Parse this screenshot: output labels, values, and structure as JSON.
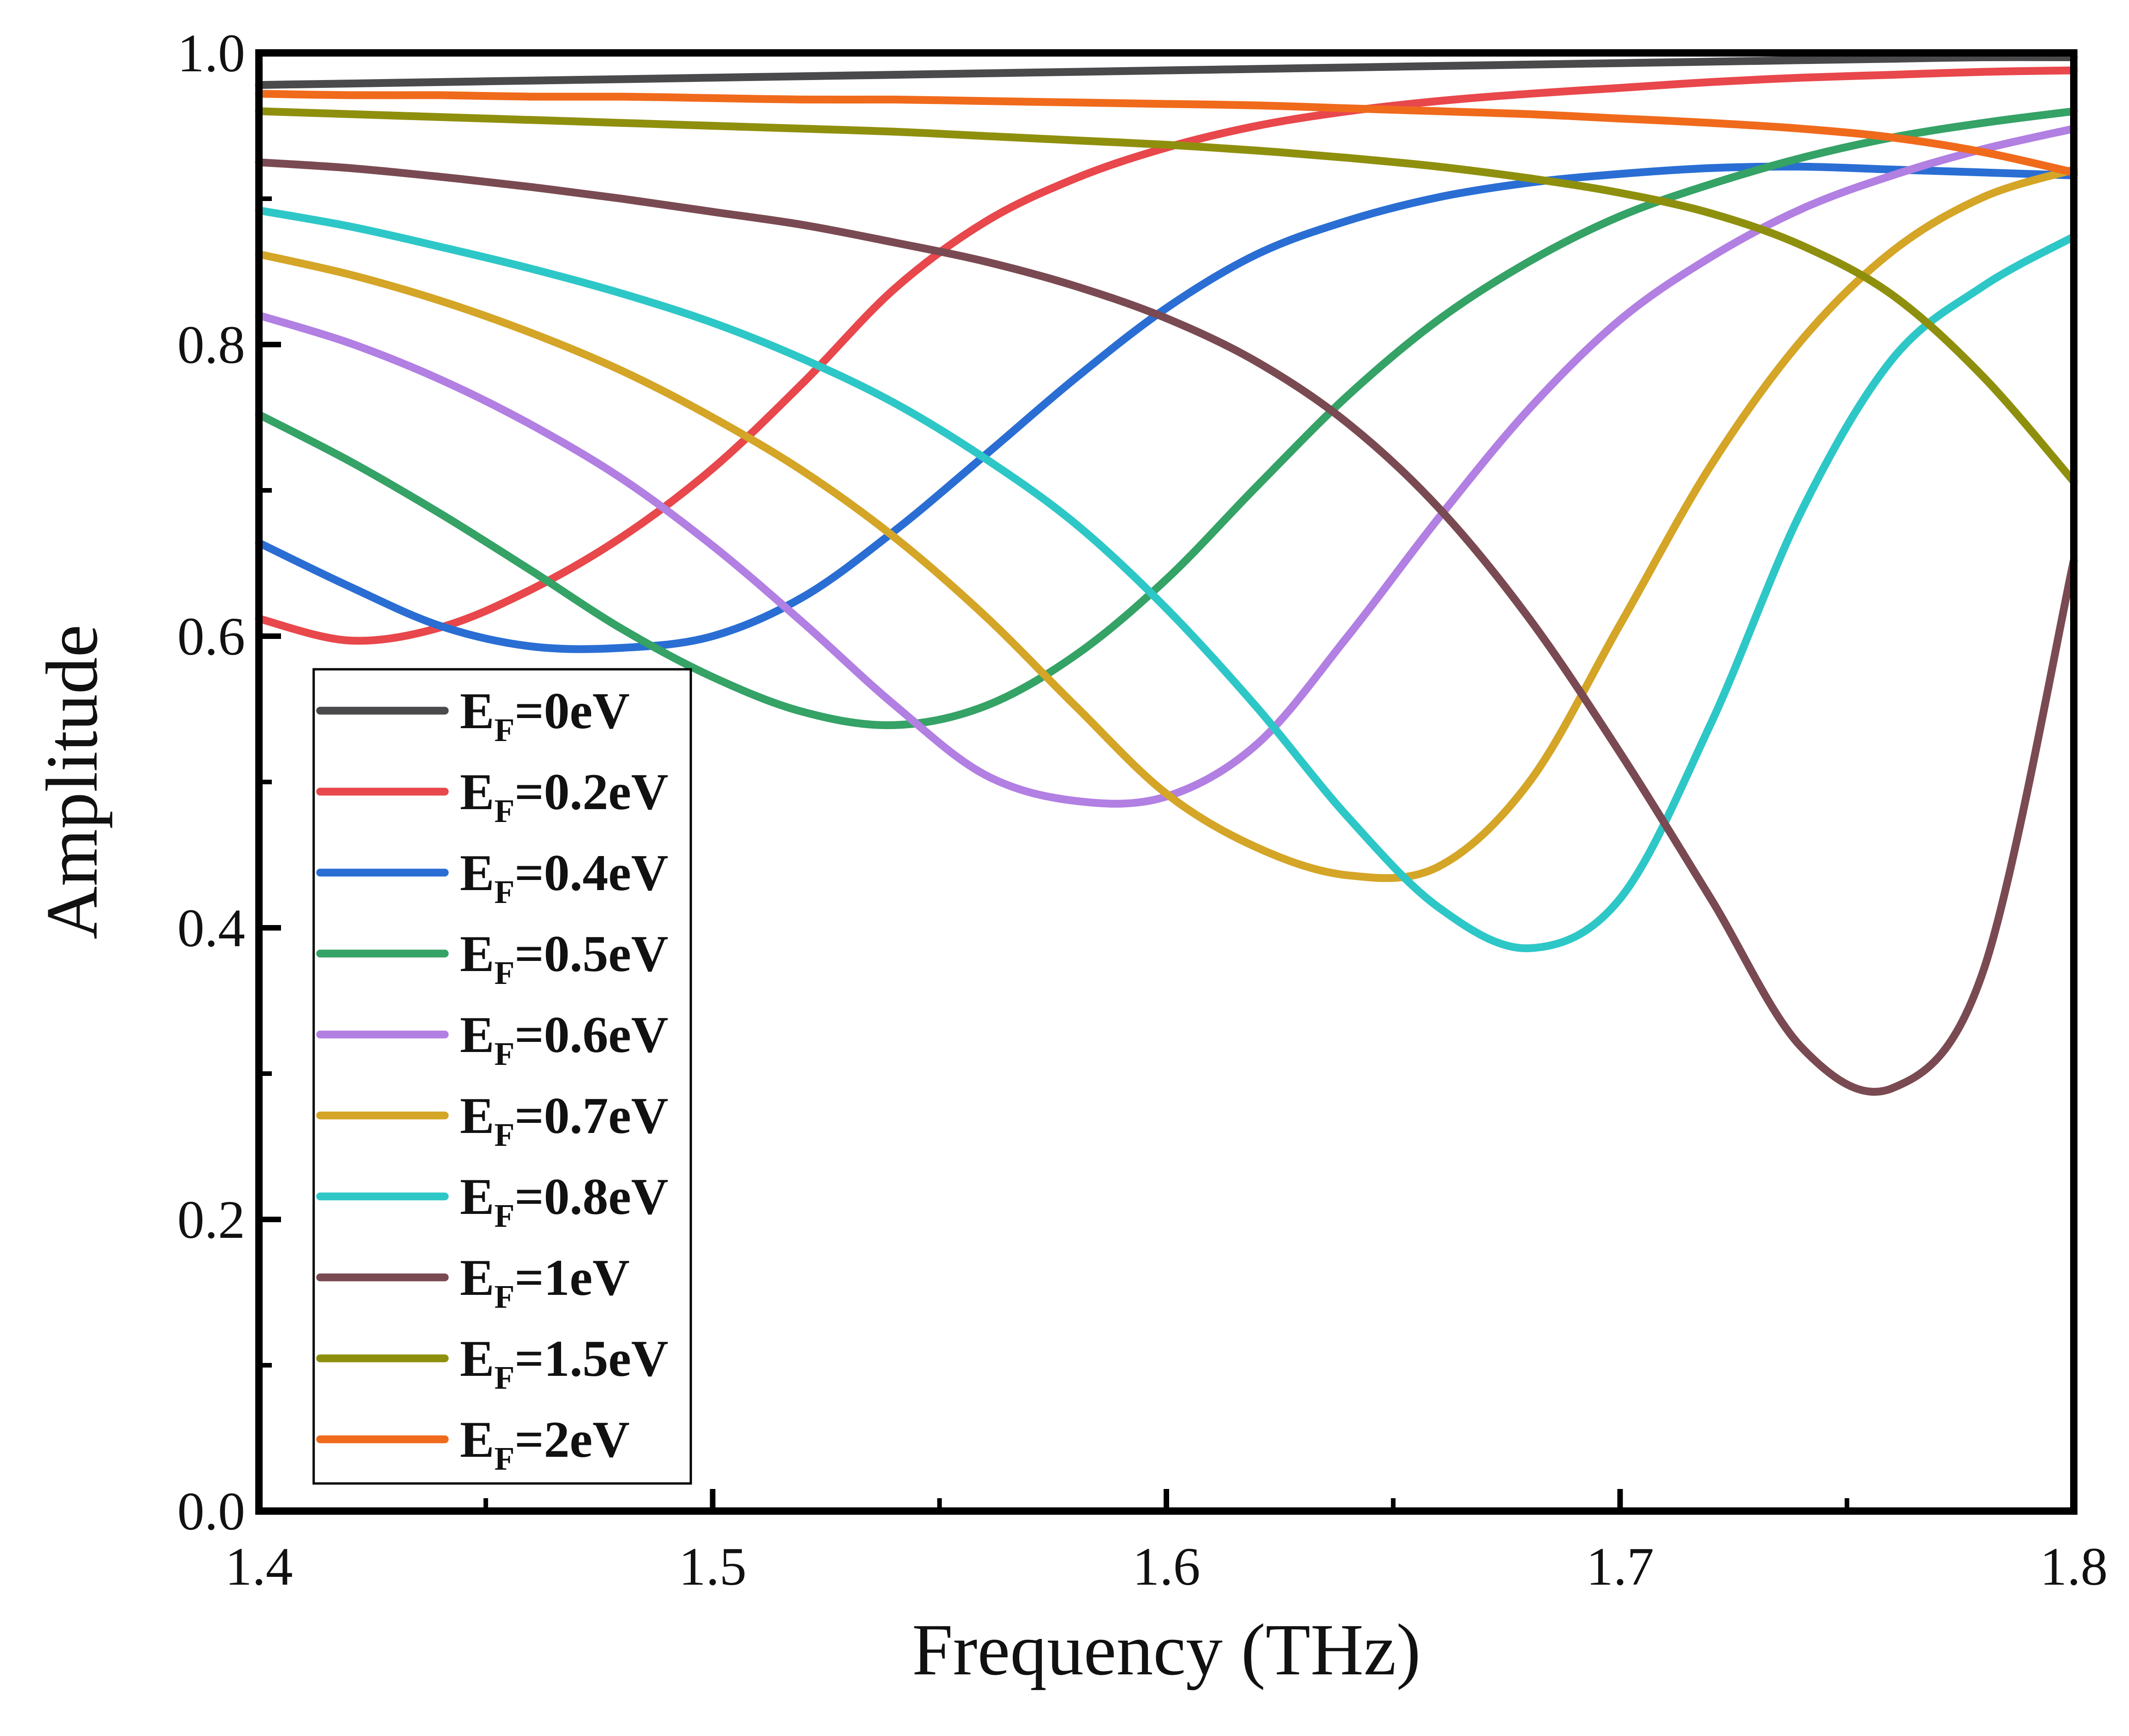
{
  "chart_data": {
    "type": "line",
    "title": "",
    "xlabel": "Frequency (THz)",
    "ylabel": "Amplitude",
    "xlim": [
      1.4,
      1.8
    ],
    "ylim": [
      0.0,
      1.0
    ],
    "xticks": [
      1.4,
      1.5,
      1.6,
      1.7,
      1.8
    ],
    "xtick_labels": [
      "1.4",
      "1.5",
      "1.6",
      "1.7",
      "1.8"
    ],
    "yticks": [
      0.0,
      0.2,
      0.4,
      0.6,
      0.8,
      1.0
    ],
    "ytick_labels": [
      "0.0",
      "0.2",
      "0.4",
      "0.6",
      "0.8",
      "1.0"
    ],
    "grid": false,
    "legend_position": "bottom-left",
    "x": [
      1.4,
      1.42,
      1.44,
      1.46,
      1.48,
      1.5,
      1.52,
      1.54,
      1.56,
      1.58,
      1.6,
      1.62,
      1.64,
      1.66,
      1.68,
      1.7,
      1.72,
      1.74,
      1.76,
      1.78,
      1.8
    ],
    "series": [
      {
        "name": "E_F=0eV",
        "label_main": "E",
        "label_sub": "F",
        "label_tail": "=0eV",
        "color": "#4a4a4c",
        "values": [
          0.978,
          0.979,
          0.98,
          0.981,
          0.982,
          0.983,
          0.984,
          0.985,
          0.986,
          0.987,
          0.988,
          0.989,
          0.99,
          0.991,
          0.992,
          0.993,
          0.994,
          0.995,
          0.996,
          0.997,
          0.997
        ]
      },
      {
        "name": "E_F=0.2eV",
        "label_main": "E",
        "label_sub": "F",
        "label_tail": "=0.2eV",
        "color": "#e8474b",
        "values": [
          0.612,
          0.597,
          0.606,
          0.632,
          0.668,
          0.715,
          0.774,
          0.838,
          0.884,
          0.914,
          0.935,
          0.95,
          0.96,
          0.967,
          0.972,
          0.976,
          0.98,
          0.983,
          0.985,
          0.987,
          0.988
        ]
      },
      {
        "name": "E_F=0.4eV",
        "label_main": "E",
        "label_sub": "F",
        "label_tail": "=0.4eV",
        "color": "#2a6ed4",
        "values": [
          0.664,
          0.634,
          0.607,
          0.593,
          0.592,
          0.6,
          0.627,
          0.672,
          0.724,
          0.777,
          0.825,
          0.862,
          0.885,
          0.901,
          0.911,
          0.917,
          0.921,
          0.922,
          0.92,
          0.918,
          0.916
        ]
      },
      {
        "name": "E_F=0.5eV",
        "label_main": "E",
        "label_sub": "F",
        "label_tail": "=0.5eV",
        "color": "#35a266",
        "values": [
          0.752,
          0.72,
          0.684,
          0.645,
          0.605,
          0.572,
          0.548,
          0.539,
          0.552,
          0.587,
          0.639,
          0.703,
          0.765,
          0.817,
          0.857,
          0.888,
          0.91,
          0.928,
          0.942,
          0.952,
          0.96
        ]
      },
      {
        "name": "E_F=0.6eV",
        "label_main": "E",
        "label_sub": "F",
        "label_tail": "=0.6eV",
        "color": "#b27fe2",
        "values": [
          0.82,
          0.801,
          0.776,
          0.745,
          0.708,
          0.662,
          0.609,
          0.553,
          0.505,
          0.487,
          0.49,
          0.526,
          0.6,
          0.681,
          0.756,
          0.817,
          0.86,
          0.893,
          0.916,
          0.934,
          0.948
        ]
      },
      {
        "name": "E_F=0.7eV",
        "label_main": "E",
        "label_sub": "F",
        "label_tail": "=0.7eV",
        "color": "#d4a526",
        "values": [
          0.862,
          0.848,
          0.83,
          0.808,
          0.782,
          0.75,
          0.713,
          0.668,
          0.614,
          0.552,
          0.492,
          0.455,
          0.436,
          0.442,
          0.5,
          0.608,
          0.717,
          0.803,
          0.864,
          0.901,
          0.92
        ]
      },
      {
        "name": "E_F=0.8eV",
        "label_main": "E",
        "label_sub": "F",
        "label_tail": "=0.8eV",
        "color": "#2ec7c7",
        "values": [
          0.892,
          0.881,
          0.867,
          0.852,
          0.835,
          0.815,
          0.79,
          0.76,
          0.722,
          0.677,
          0.619,
          0.551,
          0.476,
          0.414,
          0.386,
          0.42,
          0.54,
          0.686,
          0.79,
          0.84,
          0.874
        ]
      },
      {
        "name": "E_F=1eV",
        "label_main": "E",
        "label_sub": "F",
        "label_tail": "=1eV",
        "color": "#7a4a52",
        "values": [
          0.925,
          0.921,
          0.915,
          0.908,
          0.9,
          0.891,
          0.882,
          0.87,
          0.857,
          0.84,
          0.818,
          0.788,
          0.746,
          0.688,
          0.612,
          0.52,
          0.42,
          0.318,
          0.29,
          0.37,
          0.652
        ]
      },
      {
        "name": "E_F=1.5eV",
        "label_main": "E",
        "label_sub": "F",
        "label_tail": "=1.5eV",
        "color": "#8f8f0e",
        "values": [
          0.96,
          0.958,
          0.956,
          0.954,
          0.952,
          0.95,
          0.948,
          0.946,
          0.943,
          0.94,
          0.937,
          0.933,
          0.928,
          0.922,
          0.914,
          0.904,
          0.89,
          0.868,
          0.834,
          0.778,
          0.706
        ]
      },
      {
        "name": "E_F=2eV",
        "label_main": "E",
        "label_sub": "F",
        "label_tail": "=2eV",
        "color": "#f06a1c",
        "values": [
          0.972,
          0.971,
          0.971,
          0.97,
          0.97,
          0.969,
          0.968,
          0.968,
          0.967,
          0.966,
          0.965,
          0.964,
          0.962,
          0.96,
          0.958,
          0.955,
          0.952,
          0.948,
          0.942,
          0.932,
          0.918
        ]
      }
    ]
  }
}
